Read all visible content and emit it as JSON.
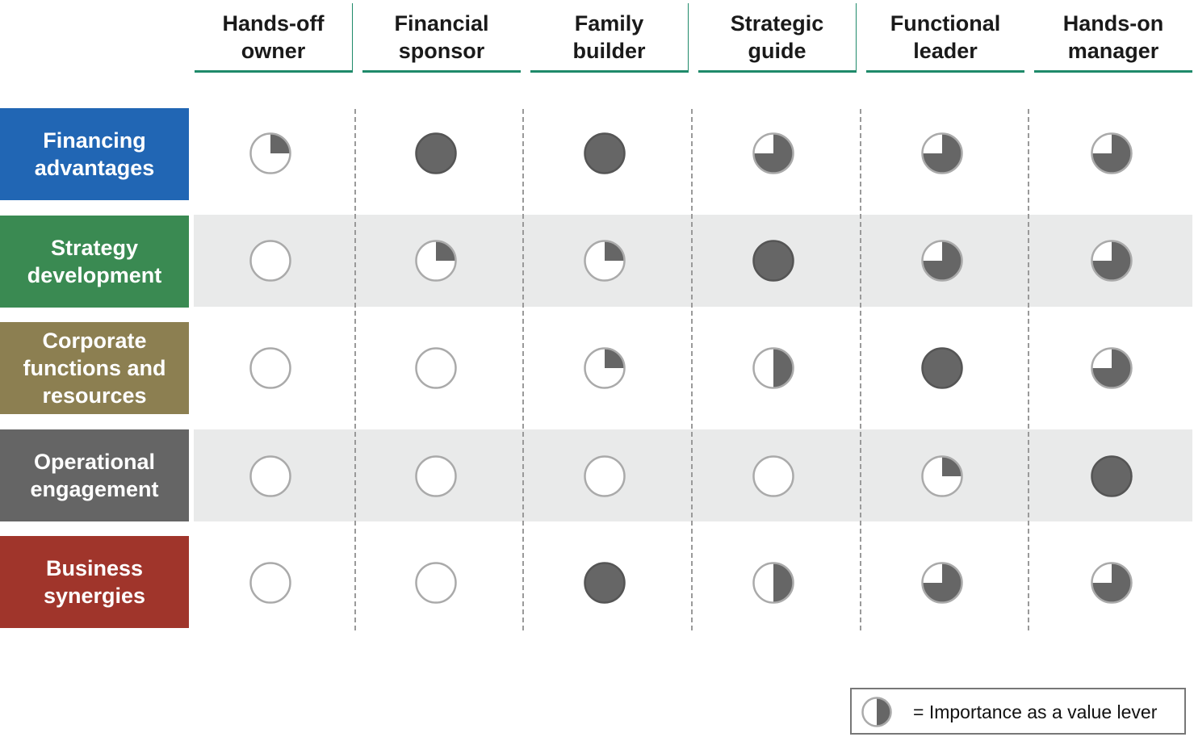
{
  "colors": {
    "header_underline": "#1f8a6a",
    "row_band": "#e9eaea",
    "filled": "#666666",
    "outline": "#aaaaaa"
  },
  "columns": [
    "Hands-off\nowner",
    "Financial\nsponsor",
    "Family\nbuilder",
    "Strategic\nguide",
    "Functional\nleader",
    "Hands-on\nmanager"
  ],
  "rows": [
    {
      "label": "Financing\nadvantages",
      "color": "#2166b4",
      "levels": [
        0.25,
        1,
        1,
        0.75,
        0.75,
        0.75
      ]
    },
    {
      "label": "Strategy\ndevelopment",
      "color": "#3a8a52",
      "levels": [
        0,
        0.25,
        0.25,
        1,
        0.75,
        0.75
      ]
    },
    {
      "label": "Corporate\nfunctions and\nresources",
      "color": "#8c7f51",
      "levels": [
        0,
        0,
        0.25,
        0.5,
        1,
        0.75
      ]
    },
    {
      "label": "Operational\nengagement",
      "color": "#656565",
      "levels": [
        0,
        0,
        0,
        0,
        0.25,
        1
      ]
    },
    {
      "label": "Business\nsynergies",
      "color": "#a0352b",
      "levels": [
        0,
        0,
        1,
        0.5,
        0.75,
        0.75
      ]
    }
  ],
  "legend": {
    "icon_level": 0.5,
    "text": "= Importance as a value lever"
  }
}
